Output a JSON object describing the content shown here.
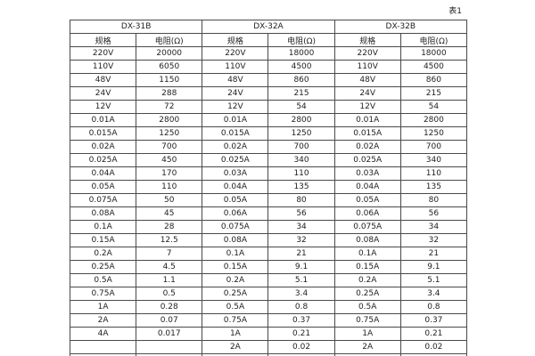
{
  "page": {
    "caption": "表1",
    "background_color": "#ffffff",
    "border_color": "#4a4a4a",
    "text_color": "#222222"
  },
  "table": {
    "groups": [
      {
        "name": "DX-31B",
        "spec_header": "规格",
        "resistance_header": "电阻(Ω)"
      },
      {
        "name": "DX-32A",
        "spec_header": "规格",
        "resistance_header": "电阻(Ω)"
      },
      {
        "name": "DX-32B",
        "spec_header": "规格",
        "resistance_header": "电阻(Ω)"
      }
    ],
    "rows": [
      [
        "220V",
        "20000",
        "220V",
        "18000",
        "220V",
        "18000"
      ],
      [
        "110V",
        "6050",
        "110V",
        "4500",
        "110V",
        "4500"
      ],
      [
        "48V",
        "1150",
        "48V",
        "860",
        "48V",
        "860"
      ],
      [
        "24V",
        "288",
        "24V",
        "215",
        "24V",
        "215"
      ],
      [
        "12V",
        "72",
        "12V",
        "54",
        "12V",
        "54"
      ],
      [
        "0.01A",
        "2800",
        "0.01A",
        "2800",
        "0.01A",
        "2800"
      ],
      [
        "0.015A",
        "1250",
        "0.015A",
        "1250",
        "0.015A",
        "1250"
      ],
      [
        "0.02A",
        "700",
        "0.02A",
        "700",
        "0.02A",
        "700"
      ],
      [
        "0.025A",
        "450",
        "0.025A",
        "340",
        "0.025A",
        "340"
      ],
      [
        "0.04A",
        "170",
        "0.03A",
        "110",
        "0.03A",
        "110"
      ],
      [
        "0.05A",
        "110",
        "0.04A",
        "135",
        "0.04A",
        "135"
      ],
      [
        "0.075A",
        "50",
        "0.05A",
        "80",
        "0.05A",
        "80"
      ],
      [
        "0.08A",
        "45",
        "0.06A",
        "56",
        "0.06A",
        "56"
      ],
      [
        "0.1A",
        "28",
        "0.075A",
        "34",
        "0.075A",
        "34"
      ],
      [
        "0.15A",
        "12.5",
        "0.08A",
        "32",
        "0.08A",
        "32"
      ],
      [
        "0.2A",
        "7",
        "0.1A",
        "21",
        "0.1A",
        "21"
      ],
      [
        "0.25A",
        "4.5",
        "0.15A",
        "9.1",
        "0.15A",
        "9.1"
      ],
      [
        "0.5A",
        "1.1",
        "0.2A",
        "5.1",
        "0.2A",
        "5.1"
      ],
      [
        "0.75A",
        "0.5",
        "0.25A",
        "3.4",
        "0.25A",
        "3.4"
      ],
      [
        "1A",
        "0.28",
        "0.5A",
        "0.8",
        "0.5A",
        "0.8"
      ],
      [
        "2A",
        "0.07",
        "0.75A",
        "0.37",
        "0.75A",
        "0.37"
      ],
      [
        "4A",
        "0.017",
        "1A",
        "0.21",
        "1A",
        "0.21"
      ],
      [
        "",
        "",
        "2A",
        "0.02",
        "2A",
        "0.02"
      ],
      [
        "",
        "",
        "4A",
        "0.018",
        "4A",
        "0.018"
      ]
    ]
  }
}
